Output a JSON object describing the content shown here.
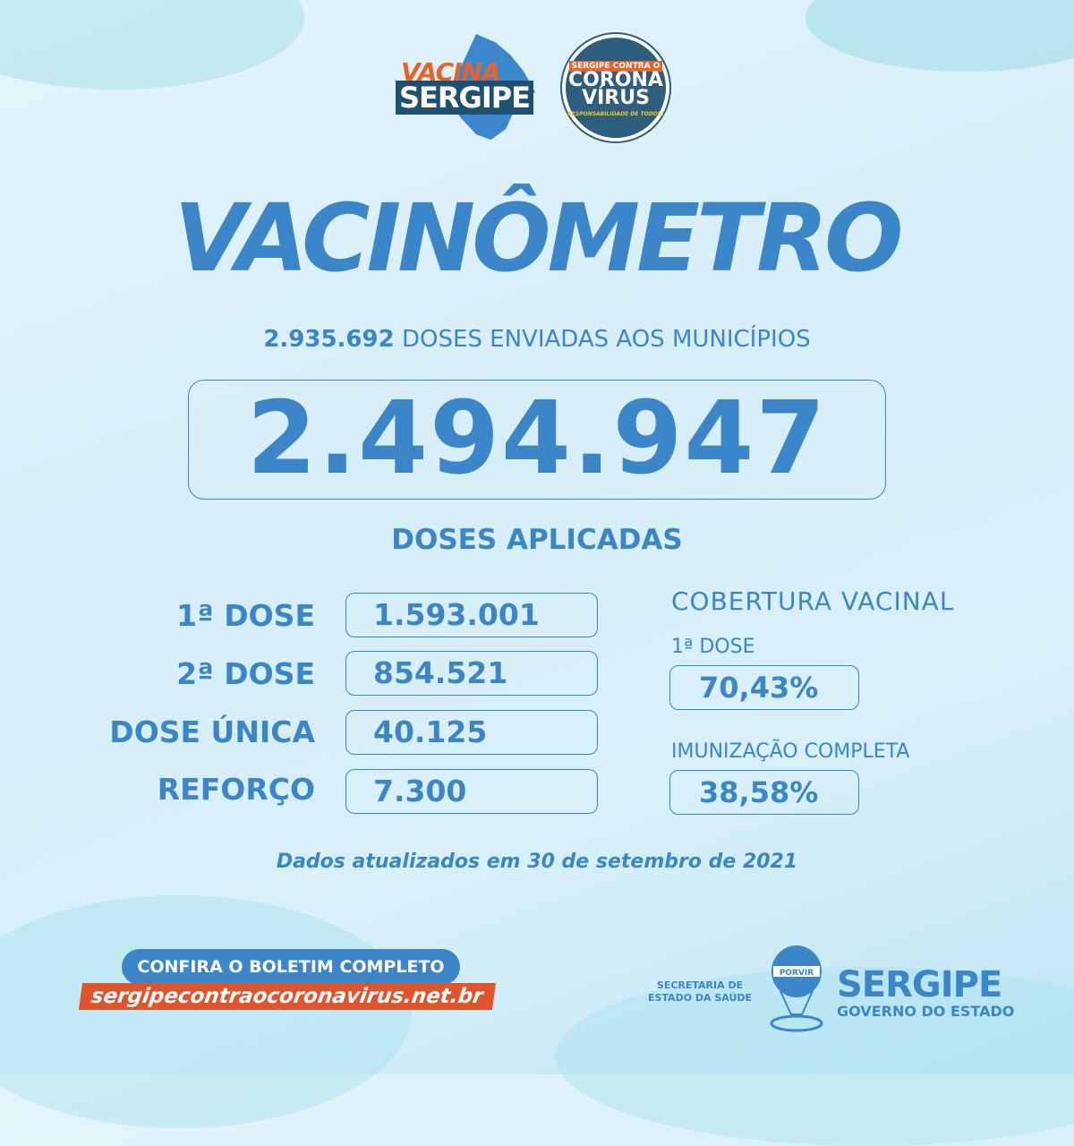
{
  "logos": {
    "vacina_sergipe": {
      "line1": "VACINA",
      "line2": "SERGIPE"
    },
    "contra_corona": {
      "top": "SERGIPE CONTRA O",
      "main": "CORONA VÍRUS",
      "tagline": "RESPONSABILIDADE DE TODOS!"
    }
  },
  "title": "VACINÔMETRO",
  "doses_sent": {
    "value": "2.935.692",
    "label": "DOSES ENVIADAS AOS MUNICÍPIOS"
  },
  "doses_applied": {
    "total": "2.494.947",
    "label": "DOSES APLICADAS"
  },
  "breakdown": [
    {
      "label": "1ª DOSE",
      "value": "1.593.001"
    },
    {
      "label": "2ª DOSE",
      "value": "854.521"
    },
    {
      "label": "DOSE ÚNICA",
      "value": "40.125"
    },
    {
      "label": "REFORÇO",
      "value": "7.300"
    }
  ],
  "coverage": {
    "title": "COBERTURA VACINAL",
    "first_label": "1ª DOSE",
    "first_value": "70,43%",
    "full_label": "IMUNIZAÇÃO COMPLETA",
    "full_value": "38,58%"
  },
  "updated": "Dados atualizados em 30 de setembro de 2021",
  "footer": {
    "cta": "CONFIRA O BOLETIM COMPLETO",
    "url": "sergipecontraocoronavirus.net.br",
    "secretaria": "SECRETARIA DE ESTADO DA SAÚDE",
    "balloon_text": "PORVIR",
    "gov_name": "SERGIPE",
    "gov_sub": "GOVERNO DO ESTADO"
  },
  "colors": {
    "primary": "#3a86c8",
    "accent": "#e0532b",
    "dark": "#2e5e7e"
  }
}
